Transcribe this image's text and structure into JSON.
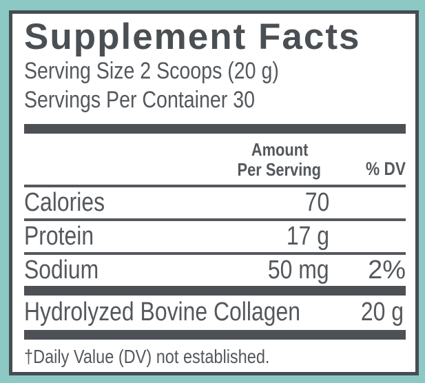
{
  "title": "Supplement Facts",
  "serving": {
    "size": "Serving Size 2 Scoops (20 g)",
    "per_container": "Servings Per Container 30"
  },
  "table": {
    "header": {
      "amount_line1": "Amount",
      "amount_line2": "Per Serving",
      "dv_label": "% DV"
    },
    "rows": [
      {
        "name": "Calories",
        "amount": "70",
        "dv": ""
      },
      {
        "name": "Protein",
        "amount": "17 g",
        "dv": ""
      },
      {
        "name": "Sodium",
        "amount": "50 mg",
        "dv": "2%"
      },
      {
        "name": "Hydrolyzed Bovine Collagen",
        "amount": "20 g",
        "dv": "†"
      }
    ]
  },
  "footnote": "†Daily Value (DV) not established.",
  "colors": {
    "background_teal": "#8cc8c4",
    "panel_border": "#474c51",
    "divider_bar": "#4d5156",
    "text_gray": "#54585c"
  }
}
